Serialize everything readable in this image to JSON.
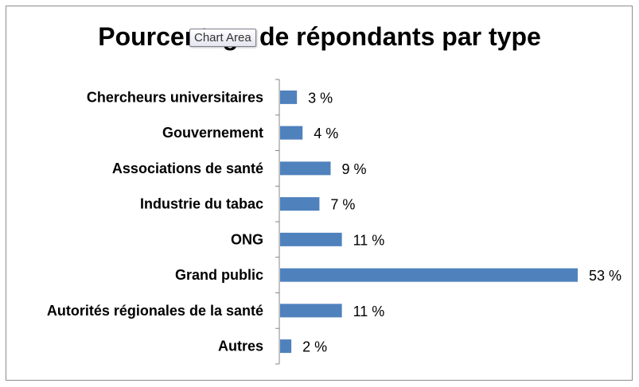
{
  "tooltip": "Chart Area",
  "chart_data": {
    "type": "bar",
    "orientation": "horizontal",
    "title": "Pourcentage de répondants par type",
    "categories": [
      "Chercheurs universitaires",
      "Gouvernement",
      "Associations de santé",
      "Industrie du tabac",
      "ONG",
      "Grand public",
      "Autorités régionales de la santé",
      "Autres"
    ],
    "values": [
      3,
      4,
      9,
      7,
      11,
      53,
      11,
      2
    ],
    "data_labels": [
      "3 %",
      "4 %",
      "9 %",
      "7 %",
      "11 %",
      "53 %",
      "11 %",
      "2 %"
    ],
    "xlim": [
      0,
      53
    ],
    "bar_color": "#4f81bd",
    "grid": false,
    "legend": "none"
  }
}
